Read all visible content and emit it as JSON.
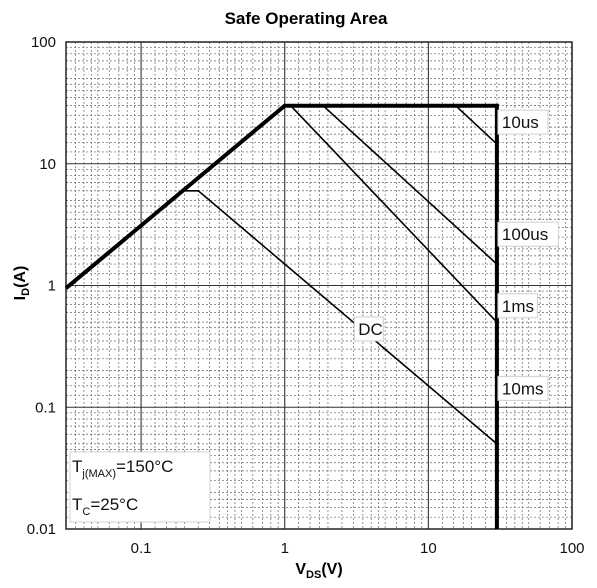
{
  "chart_data": {
    "type": "line",
    "title": "Safe Operating Area",
    "xlabel": {
      "main": "V",
      "sub": "DS",
      "suffix": "(V)"
    },
    "ylabel": {
      "main": "I",
      "sub": "D",
      "suffix": "(A)"
    },
    "xscale": "log",
    "yscale": "log",
    "xlim": [
      0.03,
      100
    ],
    "ylim": [
      0.01,
      100
    ],
    "grid": true,
    "x_ticks": [
      "0.1",
      "1",
      "10",
      "100"
    ],
    "y_ticks": [
      "0.01",
      "0.1",
      "1",
      "10",
      "100"
    ],
    "series": [
      {
        "name": "10us",
        "x": [
          0.03,
          1,
          30,
          30
        ],
        "y": [
          0.95,
          30,
          30,
          0.01
        ]
      },
      {
        "name": "100us",
        "x": [
          15.5,
          30
        ],
        "y": [
          30,
          14.5
        ]
      },
      {
        "name": "1ms",
        "x": [
          1.85,
          30
        ],
        "y": [
          30,
          1.5
        ]
      },
      {
        "name": "10ms",
        "x": [
          1.1,
          30
        ],
        "y": [
          30,
          0.5
        ]
      },
      {
        "name": "DC",
        "x": [
          0.2,
          0.25,
          30
        ],
        "y": [
          6,
          6,
          0.05
        ]
      }
    ],
    "labels": [
      {
        "text": "10us",
        "x": 32,
        "y": 20
      },
      {
        "text": "100us",
        "x": 32,
        "y": 2.4
      },
      {
        "text": "1ms",
        "x": 32,
        "y": 0.62
      },
      {
        "text": "10ms",
        "x": 32,
        "y": 0.13
      },
      {
        "text": "DC",
        "x": 3.2,
        "y": 0.4
      }
    ],
    "conditions": [
      {
        "main": "T",
        "sub": "j(MAX)",
        "suffix": "=150°C"
      },
      {
        "main": "T",
        "sub": "C",
        "suffix": "=25°C"
      }
    ]
  }
}
